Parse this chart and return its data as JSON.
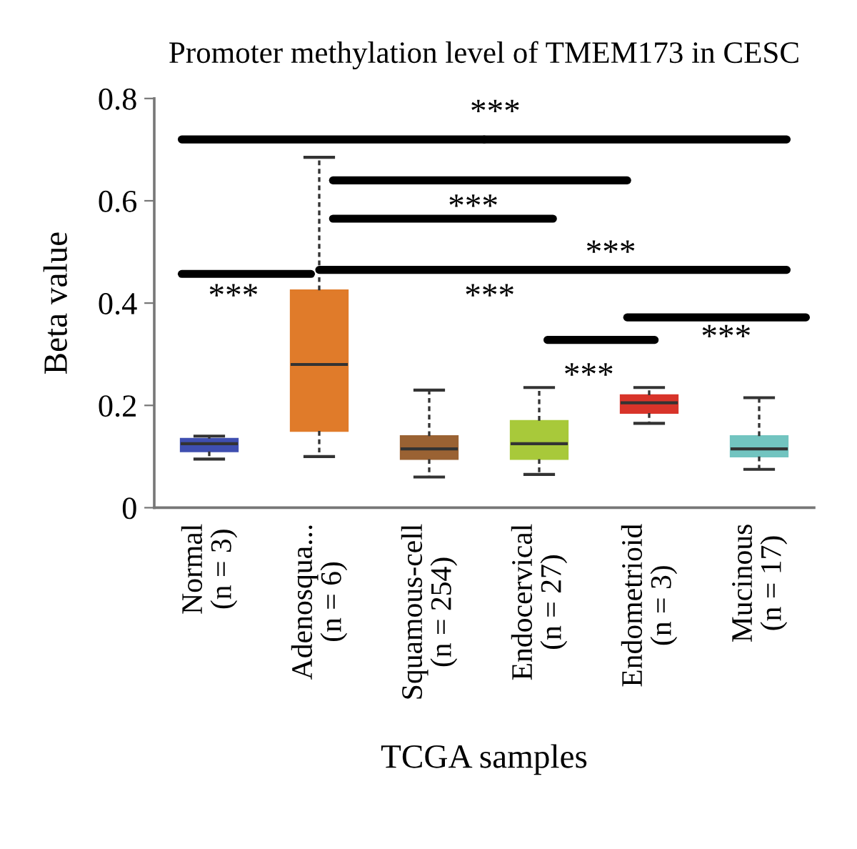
{
  "chart_data": {
    "type": "box",
    "title": "Promoter methylation level of TMEM173 in CESC",
    "xlabel": "TCGA samples",
    "ylabel": "Beta value",
    "categories": [
      "Normal\n(n = 3)",
      "Adenosqua...\n(n = 6)",
      "Squamous-cell\n(n = 254)",
      "Endocervical\n(n = 27)",
      "Endometrioid\n(n = 3)",
      "Mucinous\n(n = 17)"
    ],
    "colors": [
      "#3f4fb0",
      "#e07b2a",
      "#9a6233",
      "#a8c93a",
      "#d8342a",
      "#72c4c0"
    ],
    "boxes": [
      {
        "low": 0.095,
        "q1": 0.11,
        "median": 0.125,
        "q3": 0.135,
        "high": 0.14
      },
      {
        "low": 0.1,
        "q1": 0.15,
        "median": 0.28,
        "q3": 0.425,
        "high": 0.685
      },
      {
        "low": 0.06,
        "q1": 0.095,
        "median": 0.115,
        "q3": 0.14,
        "high": 0.23
      },
      {
        "low": 0.065,
        "q1": 0.095,
        "median": 0.125,
        "q3": 0.17,
        "high": 0.235
      },
      {
        "low": 0.165,
        "q1": 0.185,
        "median": 0.205,
        "q3": 0.22,
        "high": 0.235
      },
      {
        "low": 0.075,
        "q1": 0.1,
        "median": 0.115,
        "q3": 0.14,
        "high": 0.215
      }
    ],
    "ylim": [
      0,
      0.8
    ],
    "yticks": [
      0,
      0.2,
      0.4,
      0.6,
      0.8
    ],
    "grid": false,
    "annotations": [
      "***",
      "***",
      "***",
      "***",
      "***",
      "***",
      "***"
    ]
  }
}
